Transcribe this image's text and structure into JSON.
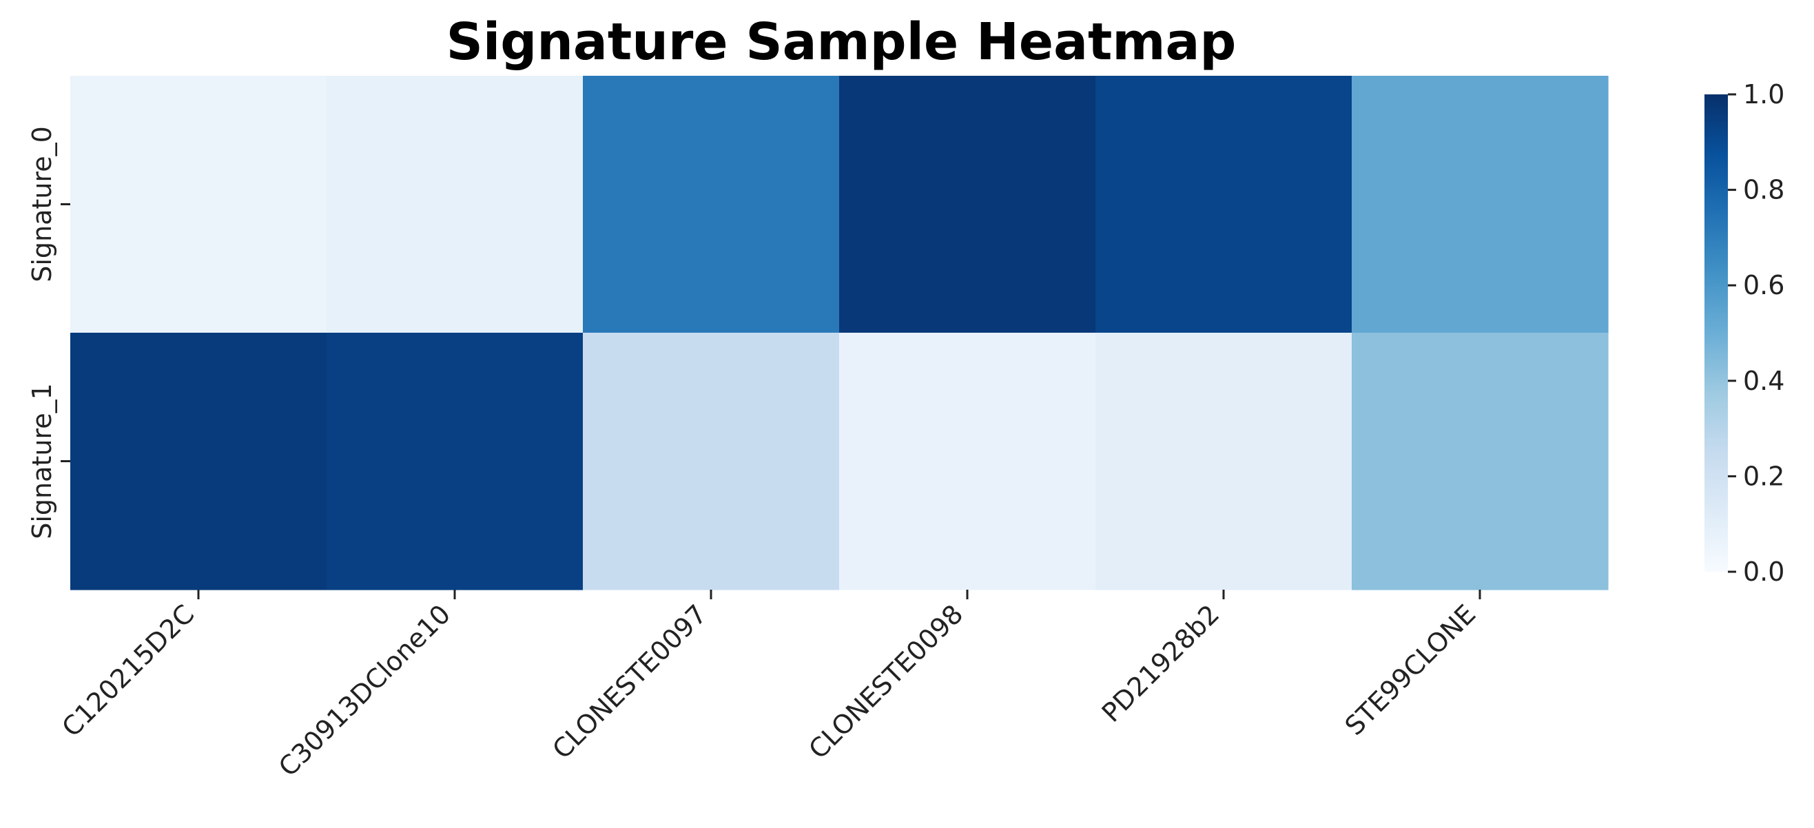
{
  "chart_data": {
    "type": "heatmap",
    "title": "Signature Sample Heatmap",
    "xlabel": "",
    "ylabel": "",
    "columns": [
      "C120215D2C",
      "C30913DClone10",
      "CLONESTE0097",
      "CLONESTE0098",
      "PD21928b2",
      "STE99CLONE"
    ],
    "rows": [
      "Signature_0",
      "Signature_1"
    ],
    "values": [
      [
        0.06,
        0.08,
        0.72,
        0.97,
        0.92,
        0.53
      ],
      [
        0.96,
        0.94,
        0.24,
        0.07,
        0.1,
        0.42
      ]
    ],
    "colorbar": {
      "range": [
        0.0,
        1.0
      ],
      "ticks": [
        "0.0",
        "0.2",
        "0.4",
        "0.6",
        "0.8",
        "1.0"
      ],
      "colormap": "Blues",
      "position": "right"
    }
  }
}
